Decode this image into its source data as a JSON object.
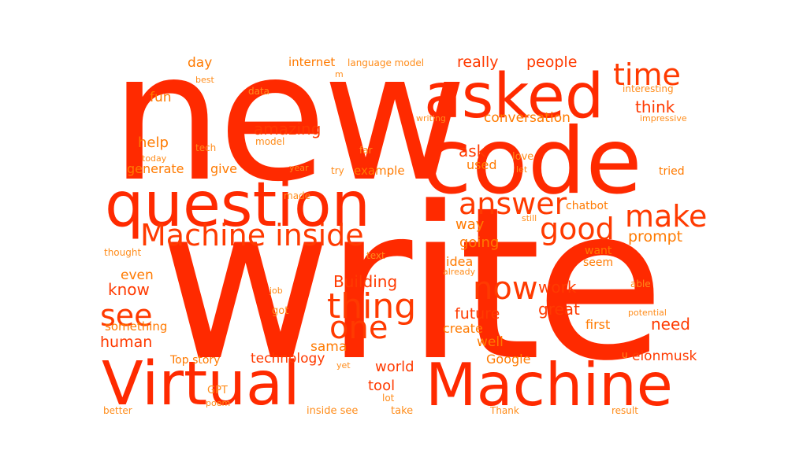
{
  "palette": {
    "large": "#ff2a00",
    "medium": "#ff3a00",
    "small": "#ff7a00",
    "tiny": "#ff8c1a"
  },
  "words": {
    "new": "new",
    "write": "write",
    "code": "code",
    "asked": "asked",
    "question": "question",
    "virtual": "Virtual",
    "machine": "Machine",
    "machine_inside": "Machine inside",
    "answer": "answer",
    "time": "time",
    "make": "make",
    "good": "good",
    "now": "now",
    "thing": "thing",
    "one": "one",
    "see": "see",
    "building": "Building",
    "future": "future",
    "work": "work",
    "great": "great",
    "need": "need",
    "first": "first",
    "well": "well",
    "create": "create",
    "google": "Google",
    "world": "world",
    "tool": "tool",
    "sama": "sama",
    "technology": "technology",
    "top_story": "Top story",
    "elonmusk": "elonmusk",
    "human": "human",
    "know": "know",
    "even": "even",
    "something": "something",
    "amazing": "amazing",
    "help": "help",
    "generate": "generate",
    "give": "give",
    "conversation": "conversation",
    "think": "think",
    "people": "people",
    "really": "really",
    "day": "day",
    "fun": "fun",
    "internet": "internet",
    "language_model": "language model",
    "data": "data",
    "tech": "tech",
    "model": "model",
    "today": "today",
    "best": "best",
    "m": "m",
    "writing": "writing",
    "far": "far",
    "year": "year",
    "try": "try",
    "example": "example",
    "ask": "ask",
    "used": "used",
    "love": "love",
    "let": "let",
    "tried": "tried",
    "interesting": "interesting",
    "impressive": "impressive",
    "made": "made",
    "chatbot": "chatbot",
    "still": "still",
    "way": "way",
    "going": "going",
    "prompt": "prompt",
    "want": "want",
    "seem": "seem",
    "thought": "thought",
    "text": "text",
    "idea": "idea",
    "already": "already",
    "able": "able",
    "job": "job",
    "got": "got",
    "potential": "potential",
    "u": "u",
    "yet": "yet",
    "gpt": "GPT",
    "poem": "poem",
    "lot": "lot",
    "better": "better",
    "inside_see": "inside see",
    "take": "take",
    "thank": "Thank",
    "result": "result"
  }
}
